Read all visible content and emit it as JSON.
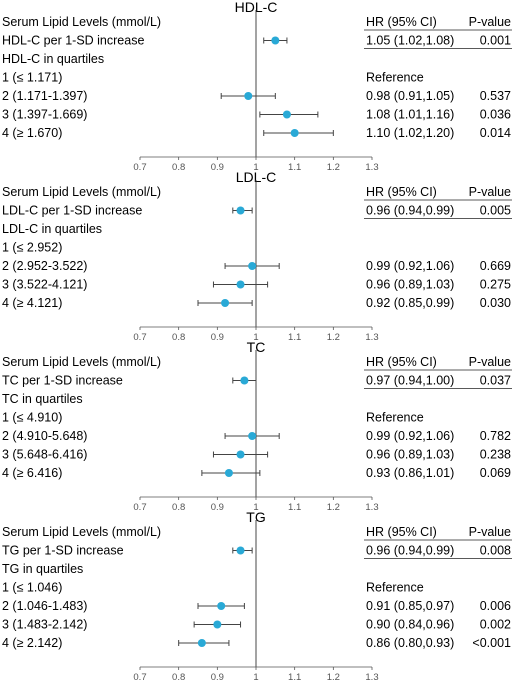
{
  "chart_data": [
    {
      "type": "forest",
      "title": "HDL-C",
      "label_header": "Serum Lipid Levels (mmol/L)",
      "hr_header": "HR (95% CI)",
      "p_header": "P-value",
      "reference_line": 1.0,
      "xlim": [
        0.7,
        1.3
      ],
      "xticks": [
        "0.7",
        "0.8",
        "0.9",
        "1",
        "1.1",
        "1.2",
        "1.3"
      ],
      "point_color": "#29a9d6",
      "rows": [
        {
          "label": "HDL-C per 1-SD increase",
          "hr": 1.05,
          "lo": 1.02,
          "hi": 1.08,
          "hr_text": "1.05 (1.02,1.08)",
          "p": "0.001"
        },
        {
          "label": "HDL-C in quartiles",
          "hr": null,
          "lo": null,
          "hi": null,
          "hr_text": "",
          "p": ""
        },
        {
          "label": "1 (≤ 1.171)",
          "hr": null,
          "lo": null,
          "hi": null,
          "hr_text": "Reference",
          "p": ""
        },
        {
          "label": "2 (1.171-1.397)",
          "hr": 0.98,
          "lo": 0.91,
          "hi": 1.05,
          "hr_text": "0.98 (0.91,1.05)",
          "p": "0.537"
        },
        {
          "label": "3 (1.397-1.669)",
          "hr": 1.08,
          "lo": 1.01,
          "hi": 1.16,
          "hr_text": "1.08 (1.01,1.16)",
          "p": "0.036"
        },
        {
          "label": "4 (≥ 1.670)",
          "hr": 1.1,
          "lo": 1.02,
          "hi": 1.2,
          "hr_text": "1.10 (1.02,1.20)",
          "p": "0.014"
        }
      ]
    },
    {
      "type": "forest",
      "title": "LDL-C",
      "label_header": "Serum Lipid Levels (mmol/L)",
      "hr_header": "HR (95% CI)",
      "p_header": "P-value",
      "reference_line": 1.0,
      "xlim": [
        0.7,
        1.3
      ],
      "xticks": [
        "0.7",
        "0.8",
        "0.9",
        "1",
        "1.1",
        "1.2",
        "1.3"
      ],
      "point_color": "#29a9d6",
      "rows": [
        {
          "label": "LDL-C per 1-SD increase",
          "hr": 0.96,
          "lo": 0.94,
          "hi": 0.99,
          "hr_text": "0.96 (0.94,0.99)",
          "p": "0.005"
        },
        {
          "label": "LDL-C in quartiles",
          "hr": null,
          "lo": null,
          "hi": null,
          "hr_text": "",
          "p": ""
        },
        {
          "label": "1 (≤ 2.952)",
          "hr": null,
          "lo": null,
          "hi": null,
          "hr_text": "",
          "p": ""
        },
        {
          "label": "2 (2.952-3.522)",
          "hr": 0.99,
          "lo": 0.92,
          "hi": 1.06,
          "hr_text": "0.99 (0.92,1.06)",
          "p": "0.669"
        },
        {
          "label": "3 (3.522-4.121)",
          "hr": 0.96,
          "lo": 0.89,
          "hi": 1.03,
          "hr_text": "0.96 (0.89,1.03)",
          "p": "0.275"
        },
        {
          "label": "4 (≥ 4.121)",
          "hr": 0.92,
          "lo": 0.85,
          "hi": 0.99,
          "hr_text": "0.92 (0.85,0.99)",
          "p": "0.030"
        }
      ]
    },
    {
      "type": "forest",
      "title": "TC",
      "label_header": "Serum Lipid Levels (mmol/L)",
      "hr_header": "HR (95% CI)",
      "p_header": "P-value",
      "reference_line": 1.0,
      "xlim": [
        0.7,
        1.3
      ],
      "xticks": [
        "0.7",
        "0.8",
        "0.9",
        "1",
        "1.1",
        "1.2",
        "1.3"
      ],
      "point_color": "#29a9d6",
      "rows": [
        {
          "label": "TC per 1-SD increase",
          "hr": 0.97,
          "lo": 0.94,
          "hi": 1.0,
          "hr_text": "0.97 (0.94,1.00)",
          "p": "0.037"
        },
        {
          "label": "TC in quartiles",
          "hr": null,
          "lo": null,
          "hi": null,
          "hr_text": "",
          "p": ""
        },
        {
          "label": "1 (≤ 4.910)",
          "hr": null,
          "lo": null,
          "hi": null,
          "hr_text": "Reference",
          "p": ""
        },
        {
          "label": "2 (4.910-5.648)",
          "hr": 0.99,
          "lo": 0.92,
          "hi": 1.06,
          "hr_text": "0.99 (0.92,1.06)",
          "p": "0.782"
        },
        {
          "label": "3 (5.648-6.416)",
          "hr": 0.96,
          "lo": 0.89,
          "hi": 1.03,
          "hr_text": "0.96 (0.89,1.03)",
          "p": "0.238"
        },
        {
          "label": "4 (≥ 6.416)",
          "hr": 0.93,
          "lo": 0.86,
          "hi": 1.01,
          "hr_text": "0.93 (0.86,1.01)",
          "p": "0.069"
        }
      ]
    },
    {
      "type": "forest",
      "title": "TG",
      "label_header": "Serum Lipid Levels (mmol/L)",
      "hr_header": "HR (95% CI)",
      "p_header": "P-value",
      "reference_line": 1.0,
      "xlim": [
        0.7,
        1.3
      ],
      "xticks": [
        "0.7",
        "0.8",
        "0.9",
        "1",
        "1.1",
        "1.2",
        "1.3"
      ],
      "point_color": "#29a9d6",
      "rows": [
        {
          "label": "TG per 1-SD increase",
          "hr": 0.96,
          "lo": 0.94,
          "hi": 0.99,
          "hr_text": "0.96 (0.94,0.99)",
          "p": "0.008"
        },
        {
          "label": "TG in quartiles",
          "hr": null,
          "lo": null,
          "hi": null,
          "hr_text": "",
          "p": ""
        },
        {
          "label": "1 (≤ 1.046)",
          "hr": null,
          "lo": null,
          "hi": null,
          "hr_text": "Reference",
          "p": ""
        },
        {
          "label": "2 (1.046-1.483)",
          "hr": 0.91,
          "lo": 0.85,
          "hi": 0.97,
          "hr_text": "0.91 (0.85,0.97)",
          "p": "0.006"
        },
        {
          "label": "3 (1.483-2.142)",
          "hr": 0.9,
          "lo": 0.84,
          "hi": 0.96,
          "hr_text": "0.90 (0.84,0.96)",
          "p": "0.002"
        },
        {
          "label": "4 (≥ 2.142)",
          "hr": 0.86,
          "lo": 0.8,
          "hi": 0.93,
          "hr_text": "0.86 (0.80,0.93)",
          "p": "<0.001"
        }
      ]
    }
  ]
}
